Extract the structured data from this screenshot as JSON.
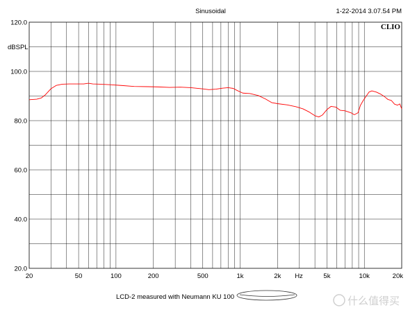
{
  "header": {
    "title": "Sinusoidal",
    "timestamp": "1-22-2014 3.07.54 PM",
    "brand": "CLIO"
  },
  "footer": {
    "legend_text": "LCD-2 measured with Neumann KU 100"
  },
  "watermark": {
    "text": "什么值得买"
  },
  "chart_data": {
    "type": "line",
    "title": "Sinusoidal",
    "xlabel": "Hz",
    "ylabel": "dBSPL",
    "xscale": "log",
    "xlim": [
      20,
      20000
    ],
    "ylim": [
      20,
      120
    ],
    "grid": true,
    "x_ticks": [
      {
        "value": 20,
        "label": "20"
      },
      {
        "value": 50,
        "label": "50"
      },
      {
        "value": 100,
        "label": "100"
      },
      {
        "value": 200,
        "label": "200"
      },
      {
        "value": 500,
        "label": "500"
      },
      {
        "value": 1000,
        "label": "1k"
      },
      {
        "value": 2000,
        "label": "2k"
      },
      {
        "value": 5000,
        "label": "5k"
      },
      {
        "value": 10000,
        "label": "10k"
      },
      {
        "value": 20000,
        "label": "20k"
      }
    ],
    "y_ticks": [
      {
        "value": 20,
        "label": "20.0"
      },
      {
        "value": 40,
        "label": "40.0"
      },
      {
        "value": 60,
        "label": "60.0"
      },
      {
        "value": 80,
        "label": "80.0"
      },
      {
        "value": 100,
        "label": "100.0"
      },
      {
        "value": 120,
        "label": "120.0"
      }
    ],
    "series": [
      {
        "name": "LCD-2 measured with Neumann KU 100",
        "color": "#ff0000",
        "points": [
          [
            20,
            88.5
          ],
          [
            23,
            88.7
          ],
          [
            25,
            89.2
          ],
          [
            27,
            90.5
          ],
          [
            30,
            93.0
          ],
          [
            33,
            94.3
          ],
          [
            37,
            94.8
          ],
          [
            42,
            94.9
          ],
          [
            50,
            94.9
          ],
          [
            55,
            94.9
          ],
          [
            60,
            95.2
          ],
          [
            65,
            94.9
          ],
          [
            75,
            94.8
          ],
          [
            90,
            94.6
          ],
          [
            110,
            94.3
          ],
          [
            140,
            93.9
          ],
          [
            180,
            93.8
          ],
          [
            220,
            93.7
          ],
          [
            270,
            93.5
          ],
          [
            330,
            93.6
          ],
          [
            400,
            93.4
          ],
          [
            500,
            92.9
          ],
          [
            560,
            92.6
          ],
          [
            640,
            92.8
          ],
          [
            720,
            93.2
          ],
          [
            800,
            93.4
          ],
          [
            880,
            93.1
          ],
          [
            950,
            92.2
          ],
          [
            1050,
            91.2
          ],
          [
            1200,
            91.0
          ],
          [
            1400,
            90.2
          ],
          [
            1600,
            88.8
          ],
          [
            1800,
            87.3
          ],
          [
            2000,
            86.9
          ],
          [
            2400,
            86.4
          ],
          [
            2800,
            85.7
          ],
          [
            3200,
            84.8
          ],
          [
            3600,
            83.5
          ],
          [
            4000,
            82.0
          ],
          [
            4300,
            81.5
          ],
          [
            4600,
            82.3
          ],
          [
            5000,
            84.5
          ],
          [
            5400,
            85.8
          ],
          [
            5900,
            85.5
          ],
          [
            6400,
            84.2
          ],
          [
            7000,
            84.0
          ],
          [
            7800,
            83.2
          ],
          [
            8300,
            82.4
          ],
          [
            8900,
            83.2
          ],
          [
            9300,
            86.2
          ],
          [
            9800,
            88.2
          ],
          [
            10300,
            89.8
          ],
          [
            10900,
            91.6
          ],
          [
            11500,
            92.1
          ],
          [
            12500,
            91.6
          ],
          [
            13500,
            90.8
          ],
          [
            14500,
            89.8
          ],
          [
            15500,
            88.6
          ],
          [
            16500,
            88.2
          ],
          [
            17500,
            86.7
          ],
          [
            18500,
            86.3
          ],
          [
            19300,
            86.8
          ],
          [
            20000,
            84.8
          ]
        ]
      }
    ]
  }
}
